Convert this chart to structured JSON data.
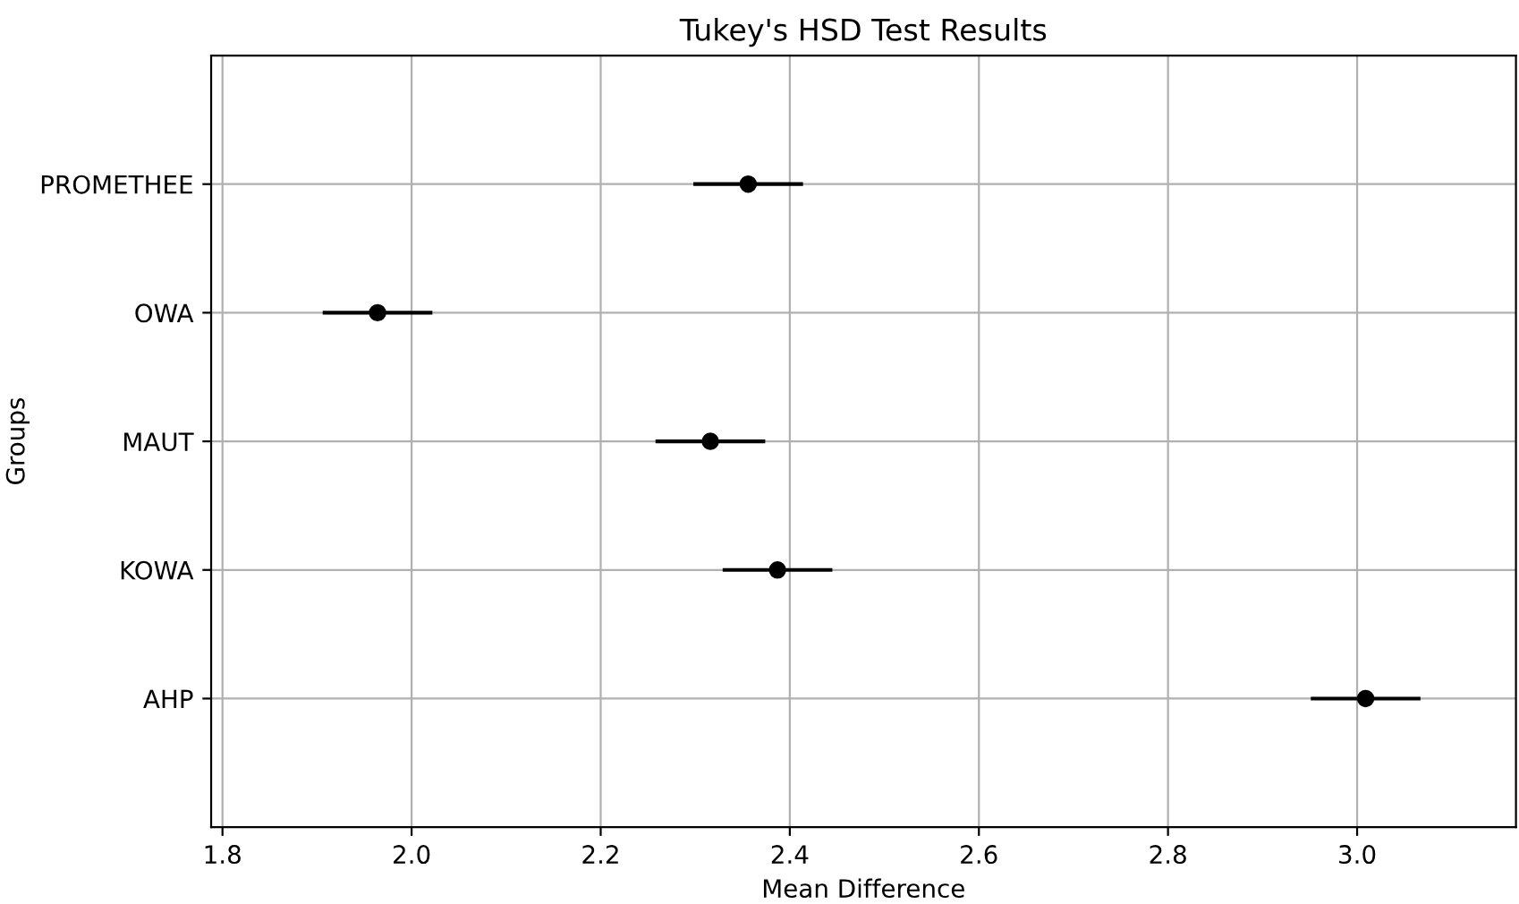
{
  "chart_data": {
    "type": "scatter",
    "orientation": "horizontal",
    "title": "Tukey's HSD Test Results",
    "xlabel": "Mean Difference",
    "ylabel": "Groups",
    "categories": [
      "PROMETHEE",
      "OWA",
      "MAUT",
      "KOWA",
      "AHP"
    ],
    "values": [
      2.356,
      1.964,
      2.316,
      2.387,
      3.009
    ],
    "errors": [
      0.058,
      0.058,
      0.058,
      0.058,
      0.058
    ],
    "color": "#000000",
    "marker": "circle",
    "grid": true,
    "xlim": [
      1.788,
      3.168
    ],
    "xticks": [
      1.8,
      {
        "value": 2,
        "label": "2.0"
      },
      2.2,
      2.4,
      2.6,
      2.8,
      {
        "value": 3,
        "label": "3.0"
      }
    ]
  }
}
